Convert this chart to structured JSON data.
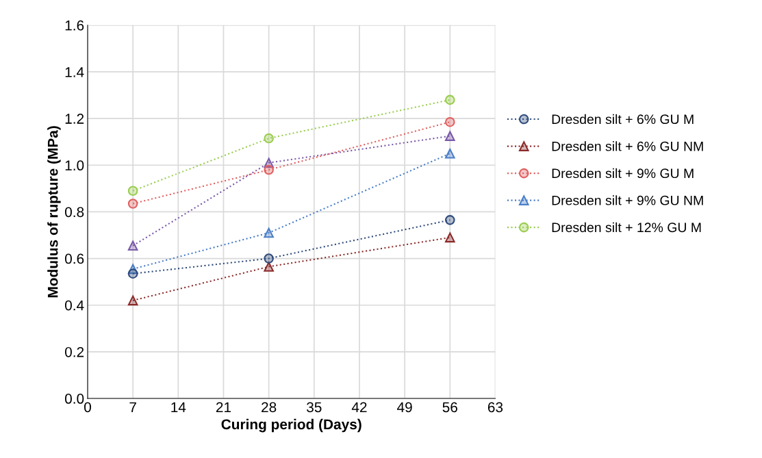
{
  "chart_data": {
    "type": "line",
    "xlabel": "Curing period (Days)",
    "ylabel": "Modulus of rupture (MPa)",
    "x": [
      7,
      28,
      56
    ],
    "xlim": [
      0,
      63
    ],
    "xticks": [
      0,
      7,
      14,
      21,
      28,
      35,
      42,
      49,
      56,
      63
    ],
    "ylim": [
      0.0,
      1.6
    ],
    "yticks": [
      {
        "value": 0.0,
        "label": "0.0"
      },
      {
        "value": 0.2,
        "label": "0.2"
      },
      {
        "value": 0.4,
        "label": "0.4"
      },
      {
        "value": 0.6,
        "label": "0.6"
      },
      {
        "value": 0.8,
        "label": "0.8"
      },
      {
        "value": 1.0,
        "label": "1.0"
      },
      {
        "value": 1.2,
        "label": "1.2"
      },
      {
        "value": 1.4,
        "label": "1.4"
      },
      {
        "value": 1.6,
        "label": "1.6"
      }
    ],
    "grid": true,
    "legend": "right",
    "line_style": "dotted",
    "series": [
      {
        "name": "Dresden silt + 6% GU M",
        "color": "#2f4b7c",
        "marker": "circle",
        "values": [
          0.535,
          0.6,
          0.765
        ]
      },
      {
        "name": "Dresden silt + 6% GU NM",
        "color": "#8b2a2a",
        "marker": "triangle",
        "values": [
          0.42,
          0.565,
          0.69
        ]
      },
      {
        "name": "Dresden silt + 9% GU M",
        "color": "#e06060",
        "marker": "circle",
        "values": [
          0.835,
          0.98,
          1.185
        ]
      },
      {
        "name": "Dresden silt + 9% GU NM",
        "color": "#4a7ec8",
        "marker": "triangle",
        "values": [
          0.555,
          0.71,
          1.05
        ]
      },
      {
        "name": "Dresden silt + 12% GU M",
        "color": "#9acd50",
        "marker": "circle",
        "values": [
          0.89,
          1.115,
          1.28
        ]
      },
      {
        "color": "#7a5aa8",
        "marker": "triangle",
        "values": [
          0.655,
          1.01,
          1.125
        ]
      }
    ]
  }
}
